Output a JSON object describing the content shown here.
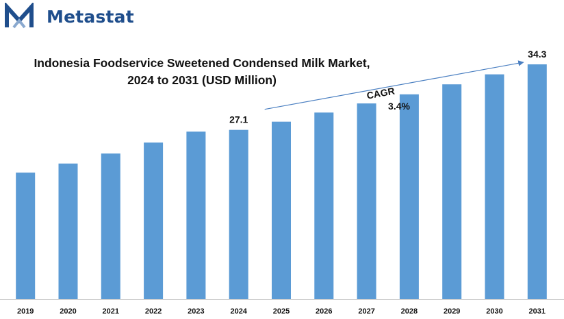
{
  "brand": {
    "name": "Metastat",
    "logo_icon": "metastat-m-logo",
    "color": "#1f4e8c"
  },
  "chart_data": {
    "type": "bar",
    "title": "Indonesia Foodservice Sweetened Condensed Milk Market, 2024 to 2031 (USD Million)",
    "title_lines": [
      "Indonesia Foodservice Sweetened Condensed Milk Market,",
      "2024 to 2031 (USD Million)"
    ],
    "categories": [
      "2019",
      "2020",
      "2021",
      "2022",
      "2023",
      "2024",
      "2025",
      "2026",
      "2027",
      "2028",
      "2029",
      "2030",
      "2031"
    ],
    "values": [
      22.4,
      23.4,
      24.5,
      25.7,
      26.9,
      27.1,
      28.0,
      29.0,
      30.0,
      31.0,
      32.1,
      33.2,
      34.3
    ],
    "data_labels": [
      {
        "category": "2024",
        "text": "27.1"
      },
      {
        "category": "2031",
        "text": "34.3"
      }
    ],
    "annotation": {
      "label": "CAGR",
      "value": "3.4%",
      "from": "2024",
      "to": "2031"
    },
    "xlabel": "",
    "ylabel": "",
    "ylim": [
      8.5,
      35.5
    ],
    "grid": false,
    "legend": "none",
    "bar_color": "#5b9bd5",
    "arrow_color": "#4a7fc1"
  }
}
